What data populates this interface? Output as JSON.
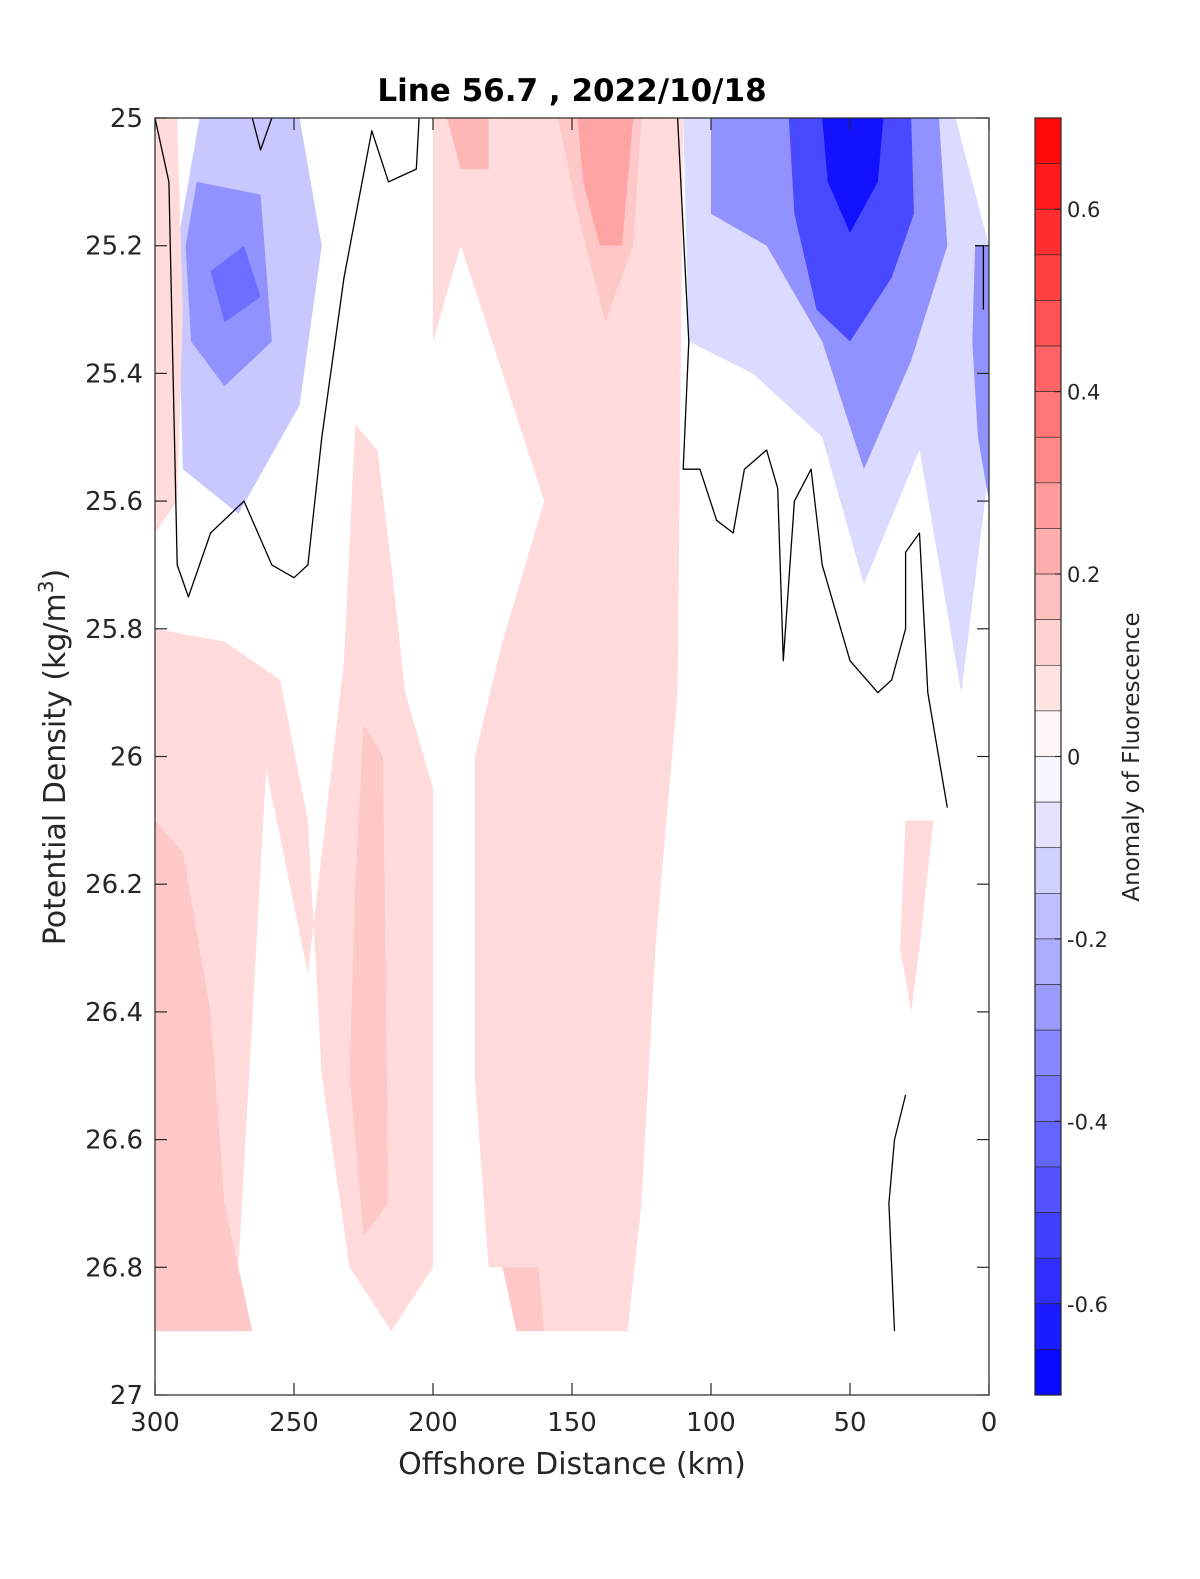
{
  "chart_data": {
    "type": "heatmap",
    "subtype": "filled-contour",
    "title": "Line 56.7 , 2022/10/18",
    "xlabel": "Offshore Distance (km)",
    "ylabel_main": "Potential Density (kg/m",
    "ylabel_sup": "3",
    "ylabel_close": ")",
    "colorbar_label": "Anomaly of Fluorescence",
    "xlim": [
      300,
      0
    ],
    "ylim": [
      25,
      27
    ],
    "x_reversed": true,
    "y_reversed": true,
    "xticks": [
      300,
      250,
      200,
      150,
      100,
      50,
      0
    ],
    "xtick_labels": [
      "300",
      "250",
      "200",
      "150",
      "100",
      "50",
      "0"
    ],
    "yticks": [
      25,
      25.2,
      25.4,
      25.6,
      25.8,
      26,
      26.2,
      26.4,
      26.6,
      26.8,
      27
    ],
    "ytick_labels": [
      "25",
      "25.2",
      "25.4",
      "25.6",
      "25.8",
      "26",
      "26.2",
      "26.4",
      "26.6",
      "26.8",
      "27"
    ],
    "clim": [
      -0.7,
      0.7
    ],
    "colorbar_ticks": [
      0.6,
      0.4,
      0.2,
      0,
      -0.2,
      -0.4,
      -0.6
    ],
    "colorbar_tick_labels": [
      "0.6",
      "0.4",
      "0.2",
      "0",
      "-0.2",
      "-0.4",
      "-0.6"
    ],
    "colorbar_levels": [
      0.7,
      0.65,
      0.6,
      0.55,
      0.5,
      0.45,
      0.4,
      0.35,
      0.3,
      0.25,
      0.2,
      0.15,
      0.1,
      0.05,
      0,
      -0.05,
      -0.1,
      -0.15,
      -0.2,
      -0.25,
      -0.3,
      -0.35,
      -0.4,
      -0.45,
      -0.5,
      -0.55,
      -0.6,
      -0.65,
      -0.7
    ],
    "colormap": "blue-white-red diverging",
    "color_positive": "#ff0000",
    "color_negative": "#0000ff",
    "color_zero": "#ffffff",
    "zero_contour_color": "#000000",
    "grid": false,
    "contour_regions": [
      {
        "sign": "negative",
        "level": -0.15,
        "points": [
          [
            284,
            25
          ],
          [
            248,
            25
          ],
          [
            240,
            25.2
          ],
          [
            248,
            25.45
          ],
          [
            270,
            25.62
          ],
          [
            290,
            25.55
          ],
          [
            292,
            25.2
          ]
        ]
      },
      {
        "sign": "negative",
        "level": -0.3,
        "points": [
          [
            285,
            25.1
          ],
          [
            262,
            25.12
          ],
          [
            258,
            25.35
          ],
          [
            275,
            25.42
          ],
          [
            287,
            25.35
          ],
          [
            289,
            25.2
          ]
        ]
      },
      {
        "sign": "negative",
        "level": -0.4,
        "points": [
          [
            268,
            25.2
          ],
          [
            262,
            25.28
          ],
          [
            275,
            25.32
          ],
          [
            280,
            25.24
          ]
        ]
      },
      {
        "sign": "negative",
        "level": -0.1,
        "points": [
          [
            110,
            25
          ],
          [
            12,
            25
          ],
          [
            0,
            25.2
          ],
          [
            0,
            25.55
          ],
          [
            10,
            25.9
          ],
          [
            25,
            25.52
          ],
          [
            45,
            25.73
          ],
          [
            60,
            25.5
          ],
          [
            85,
            25.4
          ],
          [
            108,
            25.35
          ]
        ]
      },
      {
        "sign": "negative",
        "level": -0.3,
        "points": [
          [
            100,
            25
          ],
          [
            18,
            25
          ],
          [
            15,
            25.2
          ],
          [
            28,
            25.38
          ],
          [
            45,
            25.55
          ],
          [
            60,
            25.35
          ],
          [
            80,
            25.2
          ],
          [
            100,
            25.15
          ]
        ]
      },
      {
        "sign": "negative",
        "level": -0.5,
        "points": [
          [
            72,
            25
          ],
          [
            28,
            25
          ],
          [
            27,
            25.15
          ],
          [
            35,
            25.25
          ],
          [
            50,
            25.35
          ],
          [
            62,
            25.3
          ],
          [
            70,
            25.15
          ]
        ]
      },
      {
        "sign": "negative",
        "level": -0.65,
        "points": [
          [
            60,
            25
          ],
          [
            38,
            25
          ],
          [
            40,
            25.1
          ],
          [
            50,
            25.18
          ],
          [
            58,
            25.1
          ]
        ]
      },
      {
        "sign": "negative",
        "level": -0.3,
        "points": [
          [
            5,
            25.2
          ],
          [
            0,
            25.2
          ],
          [
            0,
            25.6
          ],
          [
            4,
            25.5
          ],
          [
            6,
            25.35
          ]
        ]
      },
      {
        "sign": "positive",
        "level": 0.1,
        "points": [
          [
            300,
            25
          ],
          [
            292,
            25
          ],
          [
            290,
            25.3
          ],
          [
            292,
            25.6
          ],
          [
            300,
            25.65
          ]
        ]
      },
      {
        "sign": "positive",
        "level": 0.1,
        "points": [
          [
            300,
            25.8
          ],
          [
            275,
            25.82
          ],
          [
            255,
            25.88
          ],
          [
            245,
            26.1
          ],
          [
            240,
            26.5
          ],
          [
            230,
            26.8
          ],
          [
            215,
            26.9
          ],
          [
            200,
            26.8
          ],
          [
            200,
            26.05
          ],
          [
            210,
            25.9
          ],
          [
            215,
            25.7
          ],
          [
            220,
            25.52
          ],
          [
            228,
            25.48
          ],
          [
            232,
            25.85
          ],
          [
            245,
            26.34
          ],
          [
            260,
            26.02
          ],
          [
            270,
            26.8
          ],
          [
            270,
            26.9
          ],
          [
            300,
            26.9
          ]
        ]
      },
      {
        "sign": "positive",
        "level": 0.15,
        "points": [
          [
            300,
            26.1
          ],
          [
            290,
            26.15
          ],
          [
            280,
            26.4
          ],
          [
            275,
            26.7
          ],
          [
            270,
            26.8
          ],
          [
            265,
            26.9
          ],
          [
            300,
            26.9
          ]
        ]
      },
      {
        "sign": "positive",
        "level": 0.15,
        "points": [
          [
            225,
            25.95
          ],
          [
            218,
            26
          ],
          [
            216,
            26.7
          ],
          [
            225,
            26.75
          ],
          [
            230,
            26.5
          ],
          [
            228,
            26.2
          ]
        ]
      },
      {
        "sign": "positive",
        "level": 0.1,
        "points": [
          [
            200,
            25
          ],
          [
            110,
            25
          ],
          [
            112,
            25.9
          ],
          [
            120,
            26.3
          ],
          [
            125,
            26.7
          ],
          [
            130,
            26.9
          ],
          [
            160,
            26.9
          ],
          [
            170,
            26.8
          ],
          [
            180,
            26.8
          ],
          [
            185,
            26.5
          ],
          [
            185,
            26.0
          ],
          [
            175,
            25.82
          ],
          [
            160,
            25.6
          ],
          [
            175,
            25.4
          ],
          [
            190,
            25.2
          ],
          [
            200,
            25.35
          ]
        ]
      },
      {
        "sign": "positive",
        "level": 0.15,
        "points": [
          [
            155,
            25
          ],
          [
            125,
            25
          ],
          [
            128,
            25.2
          ],
          [
            138,
            25.32
          ],
          [
            148,
            25.15
          ]
        ]
      },
      {
        "sign": "positive",
        "level": 0.2,
        "points": [
          [
            195,
            25
          ],
          [
            180,
            25
          ],
          [
            180,
            25.08
          ],
          [
            190,
            25.08
          ]
        ]
      },
      {
        "sign": "positive",
        "level": 0.25,
        "points": [
          [
            148,
            25
          ],
          [
            128,
            25
          ],
          [
            132,
            25.2
          ],
          [
            140,
            25.2
          ],
          [
            146,
            25.1
          ]
        ]
      },
      {
        "sign": "positive",
        "level": 0.15,
        "points": [
          [
            175,
            26.8
          ],
          [
            162,
            26.8
          ],
          [
            160,
            26.9
          ],
          [
            170,
            26.9
          ]
        ]
      },
      {
        "sign": "positive",
        "level": 0.1,
        "points": [
          [
            30,
            26.1
          ],
          [
            20,
            26.1
          ],
          [
            25,
            26.3
          ],
          [
            28,
            26.4
          ],
          [
            32,
            26.3
          ]
        ]
      }
    ],
    "zero_contours": [
      [
        [
          300,
          25
        ],
        [
          295,
          25.1
        ],
        [
          292,
          25.7
        ],
        [
          288,
          25.75
        ],
        [
          280,
          25.65
        ],
        [
          268,
          25.6
        ],
        [
          258,
          25.7
        ],
        [
          250,
          25.72
        ],
        [
          245,
          25.7
        ],
        [
          240,
          25.5
        ],
        [
          232,
          25.25
        ],
        [
          222,
          25.02
        ],
        [
          216,
          25.1
        ],
        [
          206,
          25.08
        ],
        [
          205,
          25
        ]
      ],
      [
        [
          265,
          25
        ],
        [
          262,
          25.05
        ],
        [
          258,
          25
        ]
      ],
      [
        [
          112,
          25
        ],
        [
          108,
          25.35
        ],
        [
          110,
          25.55
        ],
        [
          104,
          25.55
        ],
        [
          98,
          25.63
        ],
        [
          92,
          25.65
        ],
        [
          88,
          25.55
        ],
        [
          80,
          25.52
        ],
        [
          76,
          25.58
        ],
        [
          74,
          25.85
        ],
        [
          70,
          25.6
        ],
        [
          64,
          25.55
        ],
        [
          60,
          25.7
        ],
        [
          50,
          25.85
        ],
        [
          40,
          25.9
        ],
        [
          35,
          25.88
        ],
        [
          30,
          25.8
        ],
        [
          30,
          25.68
        ],
        [
          25,
          25.65
        ],
        [
          22,
          25.9
        ],
        [
          15,
          26.08
        ]
      ],
      [
        [
          5,
          25.2
        ],
        [
          2,
          25.2
        ],
        [
          2,
          25.3
        ]
      ],
      [
        [
          34,
          26.9
        ],
        [
          36,
          26.7
        ],
        [
          34,
          26.6
        ],
        [
          30,
          26.53
        ]
      ]
    ]
  }
}
